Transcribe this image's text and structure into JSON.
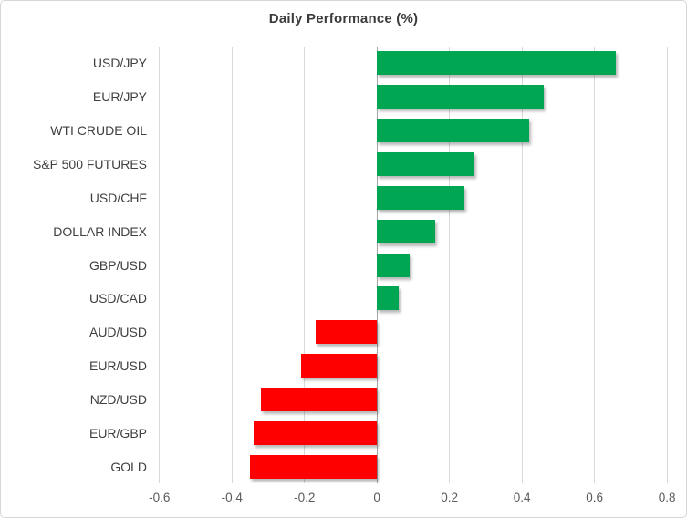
{
  "chart_data": {
    "type": "bar",
    "orientation": "horizontal",
    "title": "Daily Performance (%)",
    "xlabel": "",
    "ylabel": "",
    "categories": [
      "USD/JPY",
      "EUR/JPY",
      "WTI CRUDE OIL",
      "S&P 500 FUTURES",
      "USD/CHF",
      "DOLLAR INDEX",
      "GBP/USD",
      "USD/CAD",
      "AUD/USD",
      "EUR/USD",
      "NZD/USD",
      "EUR/GBP",
      "GOLD"
    ],
    "values": [
      0.66,
      0.46,
      0.42,
      0.27,
      0.24,
      0.16,
      0.09,
      0.06,
      -0.17,
      -0.21,
      -0.32,
      -0.34,
      -0.35
    ],
    "xlim": [
      -0.7,
      0.85
    ],
    "x_tick_values": [
      -0.6,
      -0.4,
      -0.2,
      0,
      0.2,
      0.4,
      0.6,
      0.8
    ],
    "x_tick_labels": [
      "-0.6",
      "-0.4",
      "-0.2",
      "0",
      "0.2",
      "0.4",
      "0.6",
      "0.8"
    ],
    "grid": "vertical",
    "legend": "none",
    "colors": {
      "positive": "#00a651",
      "negative": "#fe0000",
      "gridline": "#d9d9d9",
      "zero_line": "#a6a6a6",
      "title_text": "#3b3b3b",
      "category_text": "#404040",
      "tick_text": "#595959"
    }
  }
}
